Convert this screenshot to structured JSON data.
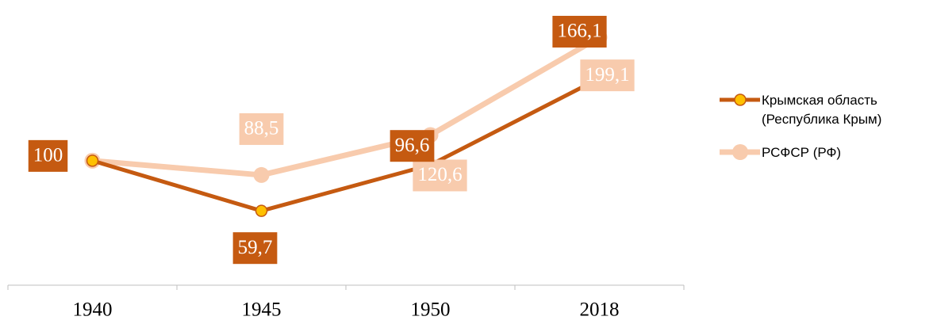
{
  "chart_data": {
    "type": "line",
    "categories": [
      "1940",
      "1945",
      "1950",
      "2018"
    ],
    "series": [
      {
        "name": "Крымская область (Республика Крым)",
        "color": "#c55a11",
        "marker_color": "#ffc000",
        "values": [
          100,
          59.7,
          96.6,
          166.1
        ],
        "value_labels": [
          "100",
          "59,7",
          "96,6",
          "166,1"
        ]
      },
      {
        "name": "РСФСР (РФ)",
        "color": "#f8cbad",
        "marker_color": "#f8cbad",
        "values": [
          100,
          88.5,
          120.6,
          199.1
        ],
        "value_labels": [
          null,
          "88,5",
          "120,6",
          "199,1"
        ]
      }
    ],
    "ylim": [
      0,
      210
    ],
    "legend": "right"
  }
}
